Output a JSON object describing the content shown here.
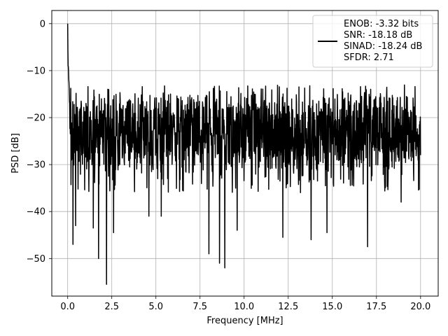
{
  "chart_data": {
    "type": "line",
    "title": "",
    "xlabel": "Frequency [MHz]",
    "ylabel": "PSD [dB]",
    "xlim": [
      -0.9,
      21.0
    ],
    "ylim": [
      -58.0,
      2.8
    ],
    "xticks": [
      0.0,
      2.5,
      5.0,
      7.5,
      10.0,
      12.5,
      15.0,
      17.5,
      20.0
    ],
    "xtick_labels": [
      "0.0",
      "2.5",
      "5.0",
      "7.5",
      "10.0",
      "12.5",
      "15.0",
      "17.5",
      "20.0"
    ],
    "yticks": [
      0,
      -10,
      -20,
      -30,
      -40,
      -50
    ],
    "ytick_labels": [
      "0",
      "−10",
      "−20",
      "−30",
      "−40",
      "−50"
    ],
    "grid": true,
    "legend_position": "top-right",
    "series": [
      {
        "name": "ENOB: -3.32 bits\nSNR: -18.18 dB\nSINAD: -18.24 dB\nSFDR: 2.71",
        "legend_lines": [
          "ENOB: -3.32 bits",
          "SNR: -18.18 dB",
          "SINAD: -18.24 dB",
          "SFDR: 2.71"
        ],
        "color": "#000000",
        "x_range": [
          0.0,
          20.0
        ],
        "peak": {
          "x": 0.0,
          "y": 0.0
        },
        "floor_upper_dB": -13,
        "floor_median_dB": -23,
        "floor_lower_dB": -36,
        "notable_minima": [
          {
            "x": 0.3,
            "y": -47
          },
          {
            "x": 0.45,
            "y": -43
          },
          {
            "x": 1.45,
            "y": -43.5
          },
          {
            "x": 1.75,
            "y": -50
          },
          {
            "x": 2.2,
            "y": -55.5
          },
          {
            "x": 2.6,
            "y": -44.5
          },
          {
            "x": 4.6,
            "y": -41
          },
          {
            "x": 5.3,
            "y": -41
          },
          {
            "x": 8.0,
            "y": -49
          },
          {
            "x": 8.6,
            "y": -51
          },
          {
            "x": 8.9,
            "y": -52
          },
          {
            "x": 9.6,
            "y": -44
          },
          {
            "x": 12.2,
            "y": -45.5
          },
          {
            "x": 13.8,
            "y": -46
          },
          {
            "x": 14.7,
            "y": -44.5
          },
          {
            "x": 17.0,
            "y": -47.5
          },
          {
            "x": 18.9,
            "y": -38
          }
        ]
      }
    ]
  }
}
